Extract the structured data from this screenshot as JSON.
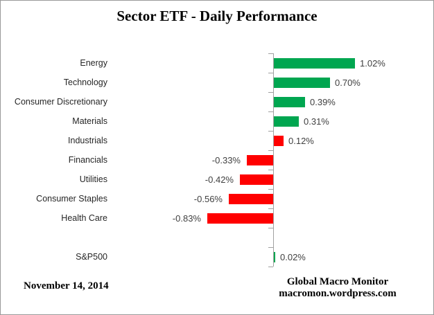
{
  "title": "Sector ETF - Daily Performance",
  "footer": {
    "date": "November 14, 2014",
    "source_line1": "Global Macro Monitor",
    "source_line2": "macromon.wordpress.com"
  },
  "colors": {
    "positive_bar": "#00A650",
    "negative_bar": "#FF0000",
    "axis": "#A0A0A0",
    "frame_border": "#999999",
    "category_text": "#262626",
    "value_text": "#404040"
  },
  "chart_data": {
    "type": "bar",
    "orientation": "horizontal",
    "title": "Sector ETF - Daily Performance",
    "categories": [
      "Energy",
      "Technology",
      "Consumer Discretionary",
      "Materials",
      "Industrials",
      "Financials",
      "Utilities",
      "Consumer Staples",
      "Health Care",
      "",
      "S&P500"
    ],
    "values": [
      1.02,
      0.7,
      0.39,
      0.31,
      0.12,
      -0.33,
      -0.42,
      -0.56,
      -0.83,
      null,
      0.02
    ],
    "value_labels": [
      "1.02%",
      "0.70%",
      "0.39%",
      "0.31%",
      "0.12%",
      "-0.33%",
      "-0.42%",
      "-0.56%",
      "-0.83%",
      "",
      "0.02%"
    ],
    "bar_colors": [
      "#00A650",
      "#00A650",
      "#00A650",
      "#00A650",
      "#FF0000",
      "#FF0000",
      "#FF0000",
      "#FF0000",
      "#FF0000",
      null,
      "#00A650"
    ],
    "xlabel": "",
    "ylabel": "",
    "xlim": [
      -1.05,
      1.45
    ],
    "grid": false,
    "legend": false,
    "value_labels_shown": true,
    "baseline": 0
  }
}
